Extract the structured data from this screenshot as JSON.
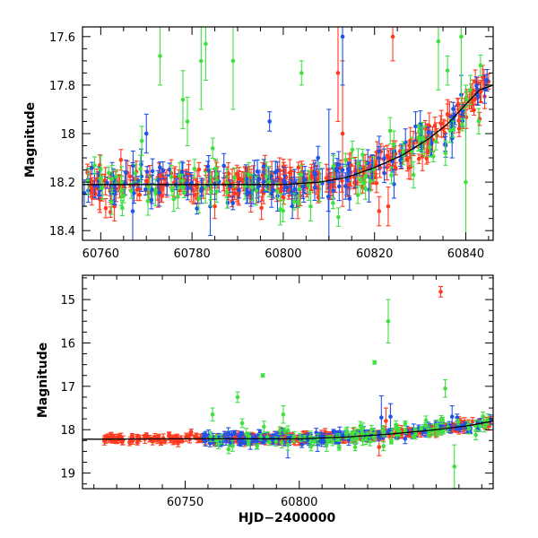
{
  "chart_data": [
    {
      "type": "scatter",
      "title": "",
      "xlabel": "",
      "ylabel": "Magnitude",
      "xlim": [
        60756,
        60846
      ],
      "ylim": [
        18.44,
        17.56
      ],
      "y_inverted": true,
      "grid": false,
      "x_ticks": [
        60760,
        60780,
        60800,
        60820,
        60840
      ],
      "y_ticks": [
        17.6,
        17.8,
        18,
        18.2,
        18.4
      ],
      "y_tick_labels": [
        "17.6",
        "17.8",
        "18",
        "18.2",
        "18.4"
      ],
      "model_curve": {
        "x": [
          60756,
          60770,
          60790,
          60800,
          60808,
          60814,
          60820,
          60826,
          60832,
          60836,
          60840,
          60843,
          60846
        ],
        "y": [
          18.21,
          18.21,
          18.21,
          18.21,
          18.2,
          18.18,
          18.14,
          18.09,
          18.02,
          17.96,
          17.88,
          17.82,
          17.8
        ]
      },
      "series": [
        {
          "name": "",
          "color": "#ff3a1f",
          "seed": 11,
          "n": 330,
          "noise": 0.032,
          "err": 0.045,
          "outliers": [
            [
              60763,
              18.3,
              0.06
            ],
            [
              60785,
              18.3,
              0.05
            ],
            [
              60812,
              17.75,
              0.2
            ],
            [
              60813,
              18.0,
              0.3
            ],
            [
              60821,
              18.32,
              0.06
            ],
            [
              60824,
              17.6,
              0.1
            ],
            [
              60823,
              18.3,
              0.08
            ],
            [
              60836,
              17.92,
              0.06
            ],
            [
              60796,
              18.13,
              0.04
            ]
          ]
        },
        {
          "name": "",
          "color": "#1f52e6",
          "seed": 23,
          "n": 150,
          "noise": 0.04,
          "err": 0.05,
          "outliers": [
            [
              60767,
              18.32,
              0.2
            ],
            [
              60770,
              18.0,
              0.08
            ],
            [
              60784,
              18.3,
              0.12
            ],
            [
              60797,
              17.95,
              0.04
            ],
            [
              60802,
              18.3,
              0.05
            ],
            [
              60810,
              18.2,
              0.3
            ],
            [
              60813,
              17.6,
              0.2
            ],
            [
              60829,
              17.97,
              0.06
            ],
            [
              60837,
              18.02,
              0.08
            ],
            [
              60839,
              17.84,
              0.08
            ]
          ]
        },
        {
          "name": "",
          "color": "#40e040",
          "seed": 37,
          "n": 90,
          "noise": 0.06,
          "err": 0.05,
          "outliers": [
            [
              60769,
              18.03,
              0.06
            ],
            [
              60773,
              17.68,
              0.12
            ],
            [
              60776,
              18.27,
              0.05
            ],
            [
              60778,
              17.86,
              0.12
            ],
            [
              60779,
              17.95,
              0.1
            ],
            [
              60782,
              17.7,
              0.2
            ],
            [
              60783,
              17.63,
              0.15
            ],
            [
              60789,
              17.7,
              0.2
            ],
            [
              60804,
              17.75,
              0.05
            ],
            [
              60806,
              18.3,
              0.06
            ],
            [
              60808,
              18.2,
              0.08
            ],
            [
              60834,
              17.62,
              0.2
            ],
            [
              60836,
              17.74,
              0.06
            ],
            [
              60839,
              17.6,
              0.3
            ],
            [
              60841,
              17.82,
              0.06
            ],
            [
              60840,
              18.2,
              0.4
            ]
          ]
        }
      ]
    },
    {
      "type": "scatter",
      "title": "",
      "xlabel": "HJD−2400000",
      "ylabel": "Magnitude",
      "xlim": [
        60705,
        60885
      ],
      "ylim": [
        19.36,
        14.44
      ],
      "y_inverted": true,
      "grid": false,
      "x_ticks": [
        60750,
        60800
      ],
      "y_ticks": [
        15,
        16,
        17,
        18,
        19
      ],
      "y_tick_labels": [
        "15",
        "16",
        "17",
        "18",
        "19"
      ],
      "model_curve": {
        "x": [
          60705,
          60750,
          60800,
          60820,
          60840,
          60860,
          60875,
          60885
        ],
        "y": [
          18.22,
          18.21,
          18.21,
          18.17,
          18.1,
          18.0,
          17.9,
          17.8
        ]
      },
      "series": [
        {
          "name": "",
          "color": "#ff3a1f",
          "seed": 51,
          "n": 360,
          "noise": 0.05,
          "err": 0.08,
          "xstart": 60714,
          "outliers": [
            [
              60862,
              14.82,
              0.12
            ],
            [
              60838,
              17.8,
              0.3
            ],
            [
              60835,
              18.4,
              0.2
            ],
            [
              60870,
              17.9,
              0.2
            ]
          ]
        },
        {
          "name": "",
          "color": "#1f52e6",
          "seed": 63,
          "n": 170,
          "noise": 0.07,
          "err": 0.1,
          "xstart": 60758,
          "outliers": [
            [
              60836,
              17.72,
              0.5
            ],
            [
              60840,
              17.7,
              0.3
            ],
            [
              60867,
              17.7,
              0.25
            ],
            [
              60795,
              18.35,
              0.3
            ],
            [
              60808,
              18.3,
              0.2
            ]
          ]
        },
        {
          "name": "",
          "color": "#40e040",
          "seed": 77,
          "n": 100,
          "noise": 0.12,
          "err": 0.1,
          "xstart": 60758,
          "outliers": [
            [
              60762,
              17.65,
              0.15
            ],
            [
              60773,
              17.25,
              0.12
            ],
            [
              60775,
              17.85,
              0.1
            ],
            [
              60784,
              16.75,
              0.04
            ],
            [
              60793,
              17.65,
              0.2
            ],
            [
              60833,
              16.45,
              0.04
            ],
            [
              60839,
              15.5,
              0.5
            ],
            [
              60864,
              17.05,
              0.2
            ],
            [
              60868,
              18.85,
              0.5
            ],
            [
              60769,
              18.45,
              0.1
            ],
            [
              60812,
              18.35,
              0.15
            ]
          ]
        }
      ]
    }
  ]
}
